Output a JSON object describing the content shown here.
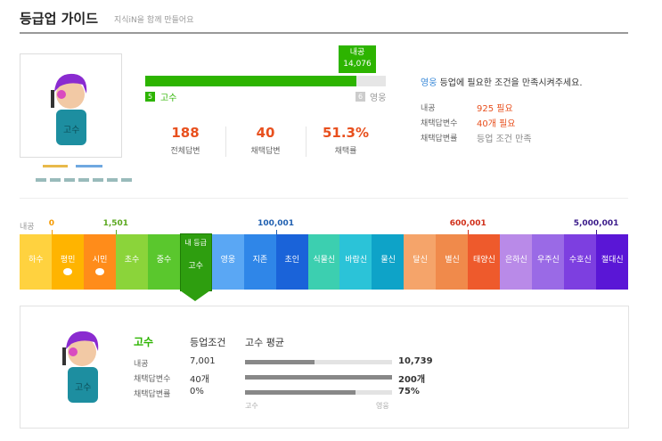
{
  "header": {
    "title": "등급업 가이드",
    "subtitle": "지식iN을 함께 만들어요"
  },
  "progress": {
    "badge_label": "내공",
    "badge_value": "14,076",
    "current_level": "5",
    "current_grade": "고수",
    "next_level": "6",
    "next_grade": "영웅"
  },
  "stats": [
    {
      "value": "188",
      "label": "전체답변"
    },
    {
      "value": "40",
      "label": "채택답변"
    },
    {
      "value": "51.3%",
      "label": "채택률"
    }
  ],
  "requirement": {
    "target": "영웅",
    "message": "등업에 필요한 조건을 만족시켜주세요.",
    "rows": [
      {
        "label": "내공",
        "value": "925 필요"
      },
      {
        "label": "채택답변수",
        "value": "40개 필요"
      },
      {
        "label": "채택답변률",
        "value": "등업 조건 만족"
      }
    ]
  },
  "scale": {
    "label": "내공",
    "thresholds": [
      "0",
      "1,501",
      "100,001",
      "600,001",
      "5,000,001"
    ],
    "my_grade_label": "내 등급",
    "grades": [
      "하수",
      "평민",
      "시민",
      "초수",
      "중수",
      "고수",
      "영웅",
      "지존",
      "초인",
      "식물신",
      "바람신",
      "물신",
      "달신",
      "별신",
      "태양신",
      "은하신",
      "우주신",
      "수호신",
      "절대신"
    ]
  },
  "detail": {
    "grade": "고수",
    "condition_header": "등업조건",
    "average_header": "고수 평균",
    "rows": [
      {
        "label": "내공",
        "condition": "7,001",
        "average": "10,739"
      },
      {
        "label": "채택답변수",
        "condition": "40개",
        "average": "200개"
      },
      {
        "label": "채택답변률",
        "condition": "0%",
        "average": "75%"
      }
    ],
    "axis_left": "고수",
    "axis_right": "영웅"
  }
}
